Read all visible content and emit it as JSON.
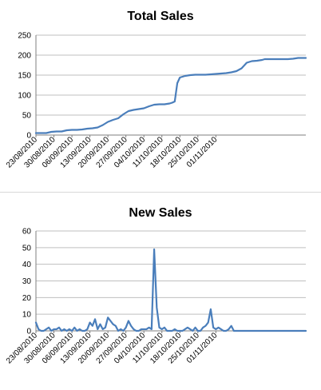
{
  "chart_data": [
    {
      "type": "line",
      "title": "Total Sales",
      "xlabel": "",
      "ylabel": "",
      "ylim": [
        0,
        250
      ],
      "yticks": [
        0,
        50,
        100,
        150,
        200,
        250
      ],
      "grid": true,
      "legend": "none",
      "categories": [
        "23/08/2010",
        "30/08/2010",
        "06/09/2010",
        "13/09/2010",
        "20/09/2010",
        "27/09/2010",
        "04/10/2010",
        "11/10/2010",
        "18/10/2010",
        "25/10/2010",
        "01/11/2010"
      ],
      "x_start": "23/08/2010",
      "series": [
        {
          "color": "#4a7ebb",
          "x": [
            0,
            2,
            4,
            6,
            8,
            10,
            12,
            14,
            16,
            18,
            20,
            22,
            24,
            26,
            28,
            30,
            32,
            34,
            36,
            38,
            40,
            42,
            44,
            46,
            48,
            50,
            52,
            53,
            54,
            55,
            56,
            58,
            60,
            62,
            64,
            66,
            68,
            70,
            72,
            74,
            76,
            78,
            80,
            82,
            84,
            86,
            88,
            89,
            90,
            92,
            94,
            96,
            98,
            100,
            102,
            104,
            105
          ],
          "values": [
            5,
            5,
            5,
            8,
            9,
            9,
            12,
            13,
            13,
            14,
            16,
            17,
            19,
            25,
            33,
            38,
            42,
            52,
            60,
            63,
            65,
            67,
            72,
            76,
            77,
            77,
            79,
            81,
            84,
            130,
            144,
            148,
            150,
            151,
            151,
            151,
            152,
            153,
            154,
            155,
            157,
            160,
            167,
            181,
            185,
            186,
            188,
            190,
            190,
            190,
            190,
            190,
            190,
            191,
            193,
            193,
            193
          ]
        }
      ]
    },
    {
      "type": "line",
      "title": "New Sales",
      "xlabel": "",
      "ylabel": "",
      "ylim": [
        0,
        60
      ],
      "yticks": [
        0,
        10,
        20,
        30,
        40,
        50,
        60
      ],
      "grid": true,
      "legend": "none",
      "categories": [
        "23/08/2010",
        "30/08/2010",
        "06/09/2010",
        "13/09/2010",
        "20/09/2010",
        "27/09/2010",
        "04/10/2010",
        "11/10/2010",
        "18/10/2010",
        "25/10/2010",
        "01/11/2010"
      ],
      "x_start": "23/08/2010",
      "series": [
        {
          "color": "#4a7ebb",
          "x": [
            0,
            1,
            2,
            3,
            4,
            5,
            6,
            7,
            8,
            9,
            10,
            11,
            12,
            13,
            14,
            15,
            16,
            17,
            18,
            19,
            20,
            21,
            22,
            23,
            24,
            25,
            26,
            27,
            28,
            29,
            30,
            31,
            32,
            33,
            34,
            35,
            36,
            37,
            38,
            39,
            40,
            41,
            42,
            43,
            44,
            45,
            46,
            47,
            48,
            49,
            50,
            51,
            52,
            53,
            54,
            55,
            56,
            57,
            58,
            59,
            60,
            61,
            62,
            63,
            64,
            65,
            66,
            67,
            68,
            69,
            70,
            71,
            72,
            73,
            74,
            75,
            76,
            77,
            78,
            79,
            80,
            81,
            82,
            83,
            84,
            85,
            86,
            87,
            88,
            89,
            90,
            91,
            92,
            93,
            94,
            95,
            96,
            97,
            98,
            99,
            100,
            101,
            102,
            103,
            104,
            105
          ],
          "values": [
            5,
            1,
            0,
            0,
            1,
            2,
            0,
            1,
            1,
            2,
            0,
            1,
            0,
            1,
            0,
            2,
            0,
            1,
            0,
            0,
            1,
            5,
            3,
            7,
            1,
            4,
            1,
            2,
            8,
            6,
            4,
            3,
            0,
            1,
            0,
            2,
            6,
            3,
            1,
            0,
            0,
            1,
            1,
            1,
            2,
            1,
            49,
            14,
            2,
            1,
            2,
            0,
            0,
            0,
            1,
            0,
            0,
            0,
            1,
            2,
            1,
            0,
            2,
            0,
            0,
            2,
            3,
            5,
            13,
            2,
            1,
            2,
            1,
            0,
            0,
            1,
            3,
            0,
            0,
            0,
            0,
            0,
            0,
            0,
            0,
            0,
            0,
            0,
            0,
            0,
            0,
            0,
            0,
            0,
            0,
            0,
            0,
            0,
            0,
            0,
            0,
            0,
            0,
            0,
            0,
            0
          ]
        }
      ]
    }
  ]
}
